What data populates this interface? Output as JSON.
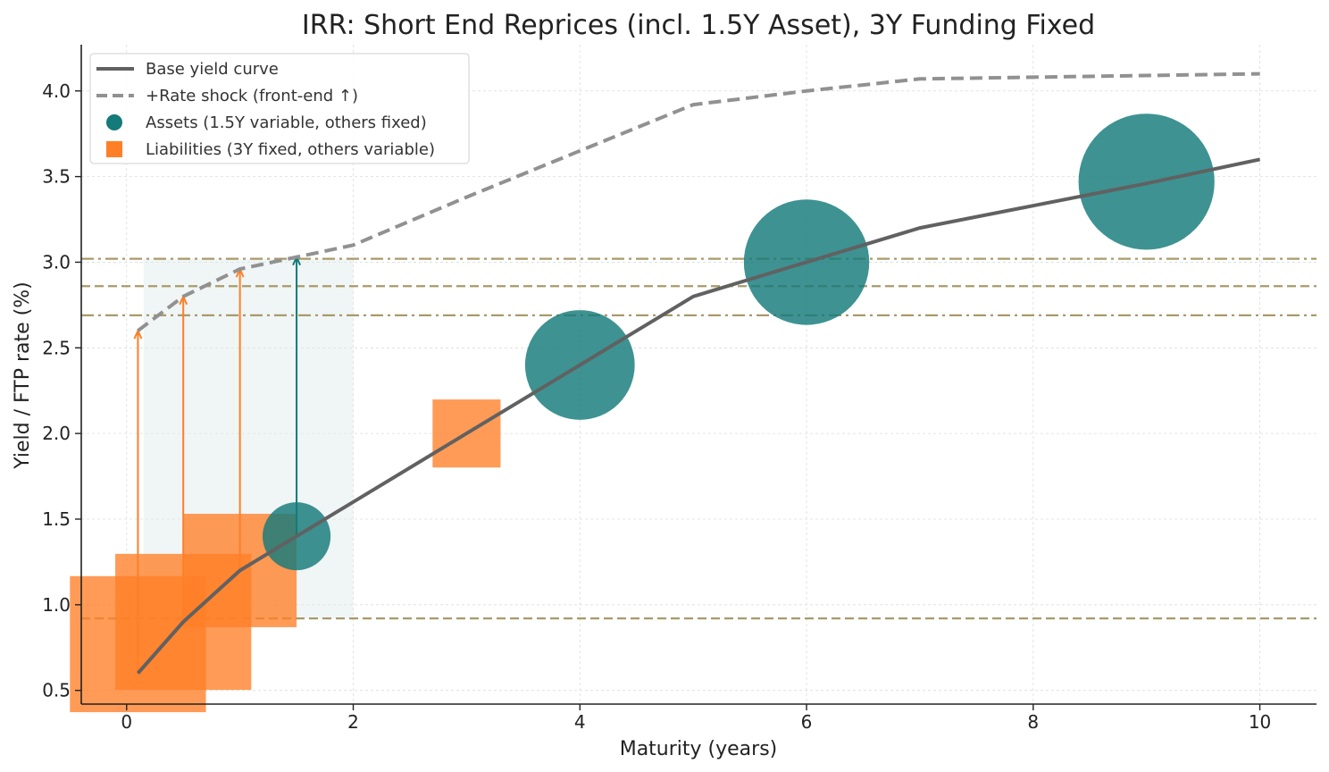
{
  "chart_data": {
    "type": "line",
    "title": "IRR: Short End Reprices (incl. 1.5Y Asset), 3Y Funding Fixed",
    "xlabel": "Maturity (years)",
    "ylabel": "Yield / FTP rate (%)",
    "xlim": [
      -0.4,
      10.5
    ],
    "ylim": [
      0.42,
      4.27
    ],
    "xticks": [
      0,
      2,
      4,
      6,
      8,
      10
    ],
    "yticks": [
      0.5,
      1.0,
      1.5,
      2.0,
      2.5,
      3.0,
      3.5,
      4.0
    ],
    "grid": true,
    "legend_position": "top-left",
    "series": [
      {
        "name": "Base yield curve",
        "style": "solid",
        "color": "#616161",
        "x": [
          0.1,
          0.5,
          1,
          2,
          3,
          4,
          5,
          6,
          7,
          8,
          9,
          10
        ],
        "y": [
          0.6,
          0.9,
          1.2,
          1.6,
          2.0,
          2.4,
          2.8,
          3.0,
          3.2,
          3.33,
          3.46,
          3.6
        ]
      },
      {
        "name": "+Rate shock (front-end ↑)",
        "style": "dashed",
        "color": "#919191",
        "x": [
          0.1,
          0.5,
          1,
          1.5,
          2,
          3,
          4,
          5,
          6,
          7,
          8,
          9,
          10
        ],
        "y": [
          2.6,
          2.8,
          2.96,
          3.03,
          3.1,
          3.38,
          3.65,
          3.92,
          4.0,
          4.07,
          4.08,
          4.09,
          4.1
        ]
      }
    ],
    "assets": {
      "name": "Assets (1.5Y variable, others fixed)",
      "color": "#147a7a",
      "points": [
        {
          "x": 1.5,
          "y": 1.4,
          "size": 1
        },
        {
          "x": 4,
          "y": 2.4,
          "size": 2.6
        },
        {
          "x": 6,
          "y": 3.0,
          "size": 3.4
        },
        {
          "x": 9,
          "y": 3.47,
          "size": 4.0
        }
      ]
    },
    "liabilities": {
      "name": "Liabilities (3Y fixed, others variable)",
      "color": "#ff7f27",
      "points": [
        {
          "x": 0.1,
          "y": 0.77,
          "size": 3.0
        },
        {
          "x": 0.5,
          "y": 0.9,
          "size": 3.0
        },
        {
          "x": 1,
          "y": 1.2,
          "size": 2.5
        },
        {
          "x": 3,
          "y": 2.0,
          "size": 1.5
        }
      ]
    },
    "shock_arrows": [
      {
        "x": 0.1,
        "y_from": 0.6,
        "y_to": 2.6,
        "color": "#ff7f27"
      },
      {
        "x": 0.5,
        "y_from": 0.9,
        "y_to": 2.8,
        "color": "#ff7f27"
      },
      {
        "x": 1,
        "y_from": 1.2,
        "y_to": 2.96,
        "color": "#ff7f27"
      },
      {
        "x": 1.5,
        "y_from": 1.4,
        "y_to": 3.03,
        "color": "#147a7a"
      }
    ],
    "reference_lines": [
      {
        "y": 3.02,
        "style": "dashdot"
      },
      {
        "y": 2.86,
        "style": "dashed"
      },
      {
        "y": 2.69,
        "style": "dashdot"
      },
      {
        "y": 0.92,
        "style": "dashed"
      }
    ],
    "reference_line_color": "#a89a6a",
    "shaded_region": {
      "x0": 0.15,
      "x1": 2.0,
      "y0": 0.92,
      "y1": 3.02,
      "color": "#dde9e9"
    }
  }
}
